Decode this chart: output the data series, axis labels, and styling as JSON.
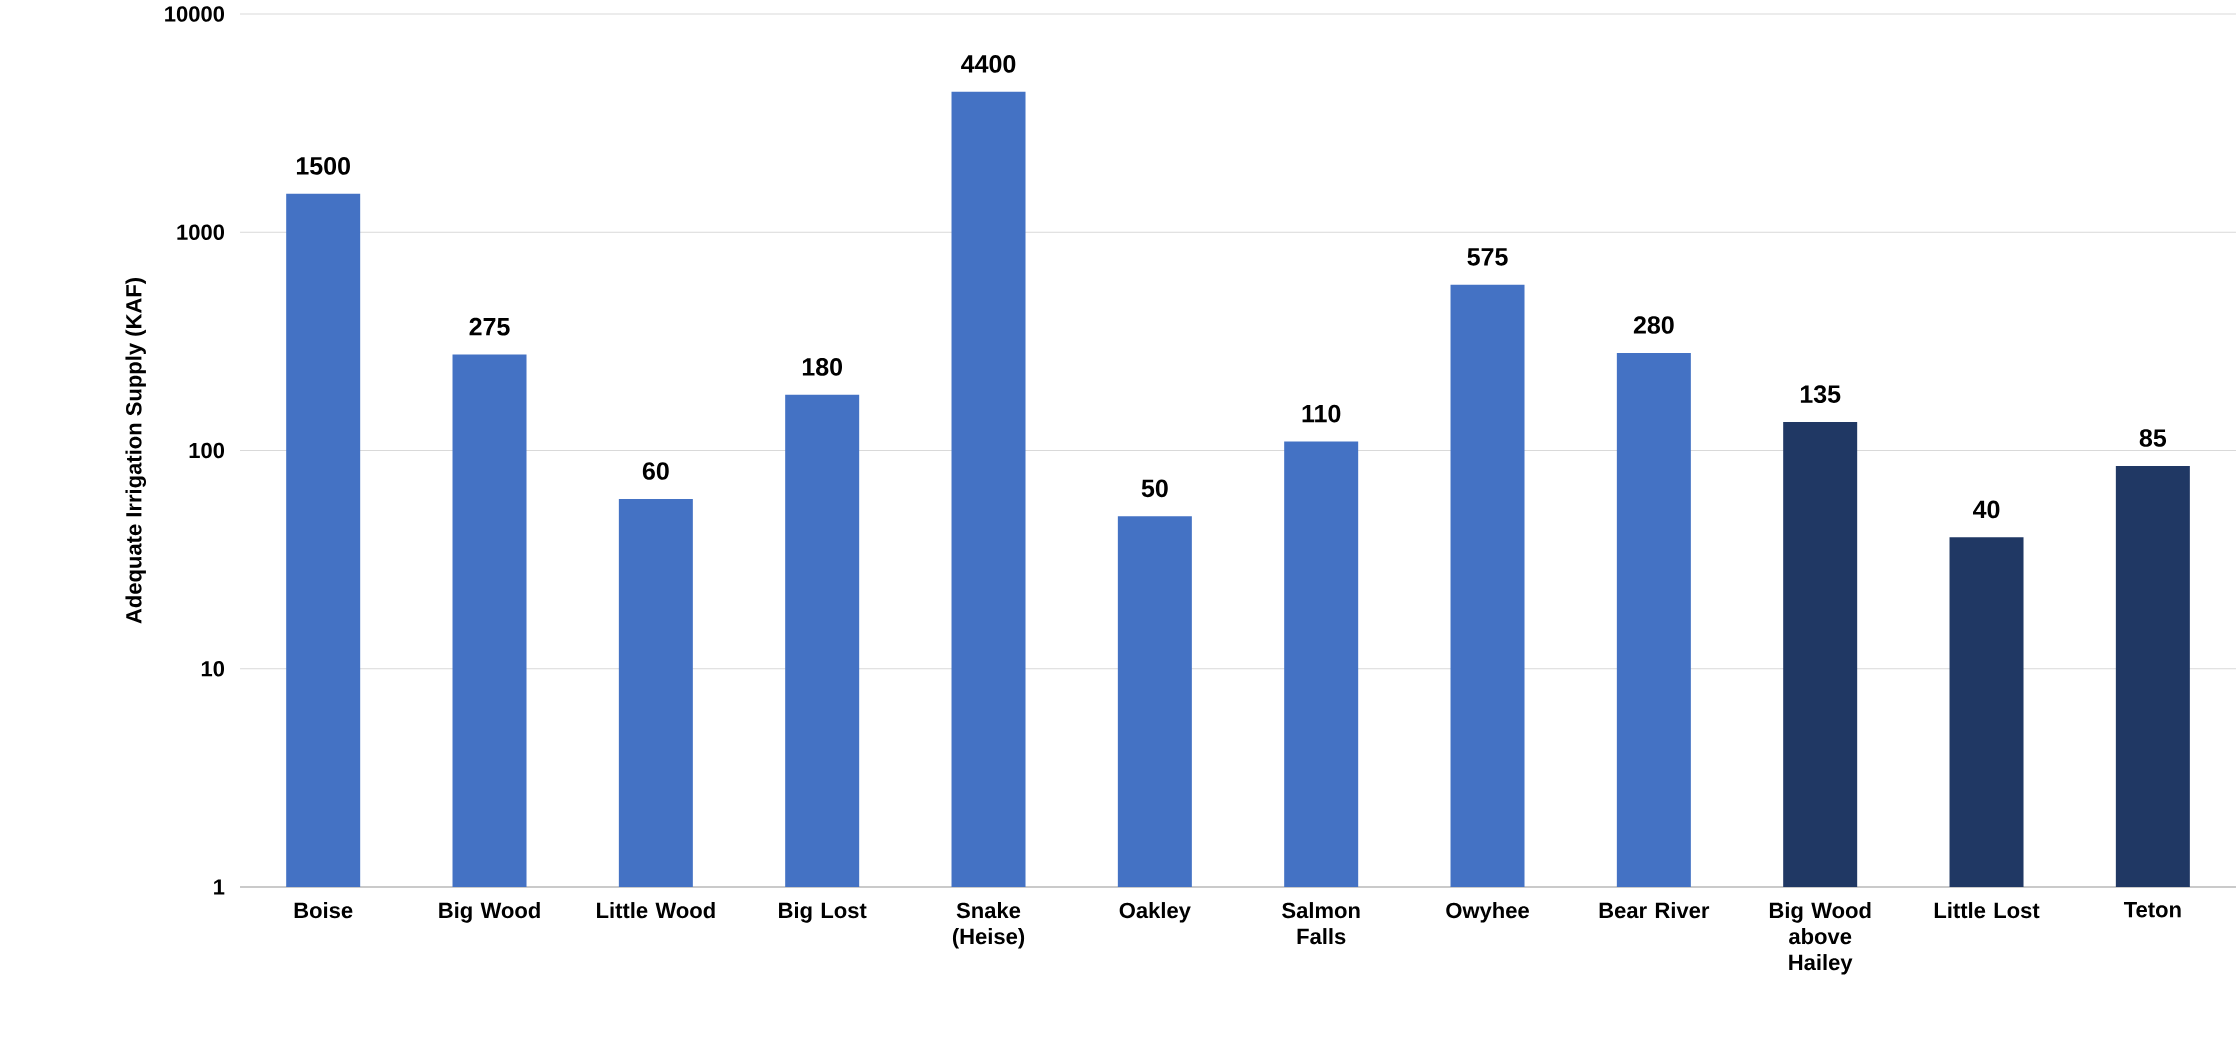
{
  "chart_data": {
    "type": "bar",
    "ylabel": "Adequate Irrigation Supply (KAF)",
    "categories": [
      "Boise",
      "Big Wood",
      "Little Wood",
      "Big Lost",
      "Snake (Heise)",
      "Oakley",
      "Salmon Falls",
      "Owyhee",
      "Bear River",
      "Big Wood above Hailey",
      "Little Lost",
      "Teton"
    ],
    "values": [
      1500,
      275,
      60,
      180,
      4400,
      50,
      110,
      575,
      280,
      135,
      40,
      85
    ],
    "value_labels": [
      "1500",
      "275",
      "60",
      "180",
      "4400",
      "50",
      "110",
      "575",
      "280",
      "135",
      "40",
      "85"
    ],
    "colors": [
      "#4472c4",
      "#4472c4",
      "#4472c4",
      "#4472c4",
      "#4472c4",
      "#4472c4",
      "#4472c4",
      "#4472c4",
      "#4472c4",
      "#203864",
      "#203864",
      "#203864"
    ],
    "log": "y",
    "ylim": [
      1,
      10000
    ],
    "yticks": [
      1,
      10,
      100,
      1000,
      10000
    ],
    "grid": "y"
  }
}
